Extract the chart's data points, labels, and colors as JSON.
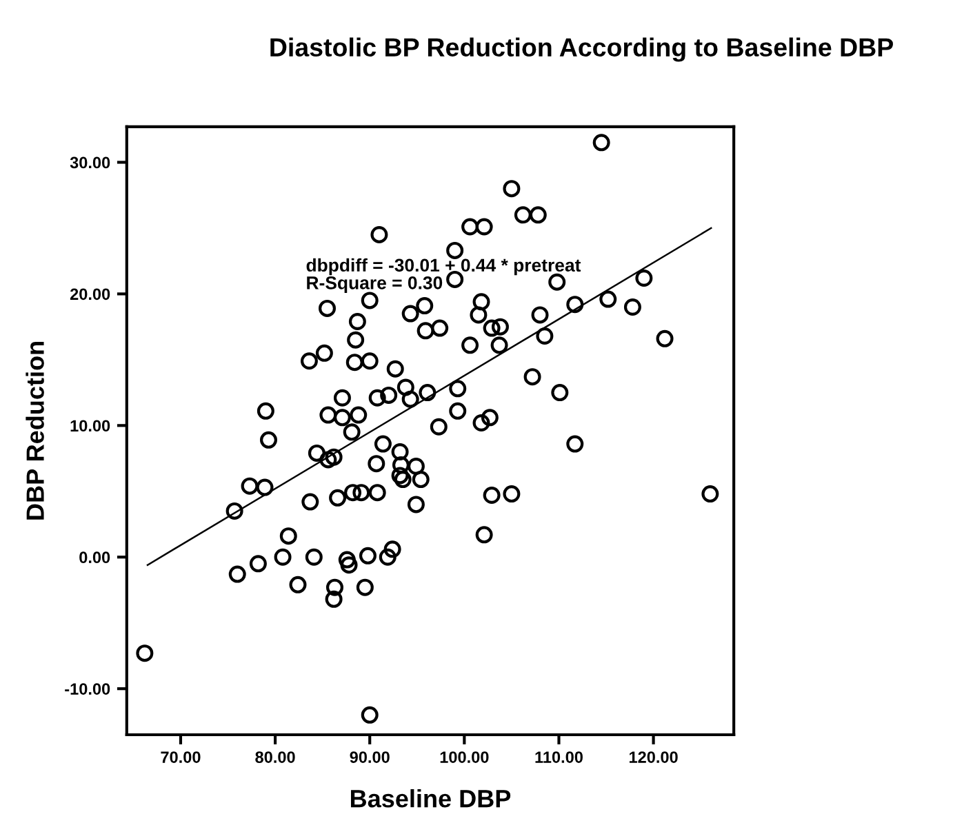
{
  "chart_data": {
    "type": "scatter",
    "title": "Diastolic BP Reduction According to Baseline DBP",
    "xlabel": "Baseline DBP",
    "ylabel": "DBP Reduction",
    "annotations": [
      "dbpdiff = -30.01 + 0.44 * pretreat",
      "R-Square = 0.30"
    ],
    "xlim": [
      64.3,
      128.5
    ],
    "ylim": [
      -13.5,
      32.7
    ],
    "xticks": [
      {
        "value": 70,
        "label": "70.00"
      },
      {
        "value": 80,
        "label": "80.00"
      },
      {
        "value": 90,
        "label": "90.00"
      },
      {
        "value": 100,
        "label": "100.00"
      },
      {
        "value": 110,
        "label": "110.00"
      },
      {
        "value": 120,
        "label": "120.00"
      }
    ],
    "yticks": [
      {
        "value": -10,
        "label": "-10.00"
      },
      {
        "value": 0,
        "label": "0.00"
      },
      {
        "value": 10,
        "label": "10.00"
      },
      {
        "value": 20,
        "label": "20.00"
      },
      {
        "value": 30,
        "label": "30.00"
      }
    ],
    "grid": false,
    "legend": false,
    "marker": "circle",
    "series": [
      {
        "color": "#000000",
        "x": [
          91.0,
          85.5,
          90.0,
          88.7,
          88.5,
          94.3,
          95.8,
          95.9,
          97.4,
          83.6,
          85.2,
          88.4,
          90.0,
          92.7,
          87.1,
          90.8,
          92.0,
          93.8,
          94.3,
          96.1,
          99.3,
          79.0,
          85.6,
          87.1,
          88.8,
          99.3,
          97.3,
          88.1,
          114.5,
          105.0,
          106.2,
          107.8,
          100.6,
          102.1,
          99.0,
          99.0,
          101.8,
          101.5,
          102.9,
          103.8,
          100.6,
          103.7,
          109.8,
          111.7,
          115.2,
          119.0,
          117.8,
          108.0,
          108.5,
          121.2,
          107.2,
          110.1,
          101.8,
          102.7,
          79.3,
          91.4,
          93.2,
          84.4,
          85.6,
          86.2,
          90.7,
          93.3,
          94.9,
          93.2,
          93.5,
          95.4,
          77.3,
          78.9,
          86.6,
          88.2,
          89.1,
          90.8,
          83.7,
          94.9,
          75.7,
          81.4,
          80.8,
          84.1,
          78.2,
          76.0,
          87.6,
          87.8,
          89.8,
          91.9,
          92.4,
          82.4,
          86.3,
          86.2,
          89.5,
          66.2,
          90.0,
          111.7,
          102.9,
          105.0,
          102.1,
          126.0
        ],
        "values": [
          24.5,
          18.9,
          19.5,
          17.9,
          16.5,
          18.5,
          19.1,
          17.2,
          17.4,
          14.9,
          15.5,
          14.8,
          14.9,
          14.3,
          12.1,
          12.1,
          12.3,
          12.9,
          12.0,
          12.5,
          12.8,
          11.1,
          10.8,
          10.6,
          10.8,
          11.1,
          9.9,
          9.5,
          31.5,
          28.0,
          26.0,
          26.0,
          25.1,
          25.1,
          23.3,
          21.1,
          19.4,
          18.4,
          17.4,
          17.5,
          16.1,
          16.1,
          20.9,
          19.2,
          19.6,
          21.2,
          19.0,
          18.4,
          16.8,
          16.6,
          13.7,
          12.5,
          10.2,
          10.6,
          8.9,
          8.6,
          8.0,
          7.9,
          7.4,
          7.6,
          7.1,
          7.0,
          6.9,
          6.2,
          5.9,
          5.9,
          5.4,
          5.3,
          4.5,
          4.9,
          4.9,
          4.9,
          4.2,
          4.0,
          3.5,
          1.6,
          0.0,
          0.0,
          -0.5,
          -1.3,
          -0.2,
          -0.6,
          0.1,
          0.0,
          0.6,
          -2.1,
          -2.3,
          -3.2,
          -2.3,
          -7.3,
          -12.0,
          8.6,
          4.7,
          4.8,
          1.7,
          4.8
        ]
      },
      {
        "type": "line",
        "color": "#000000",
        "marker": "none",
        "line_style": "solid",
        "x": [
          66.5,
          126.1
        ],
        "values": [
          -0.6,
          25.0
        ]
      }
    ]
  }
}
